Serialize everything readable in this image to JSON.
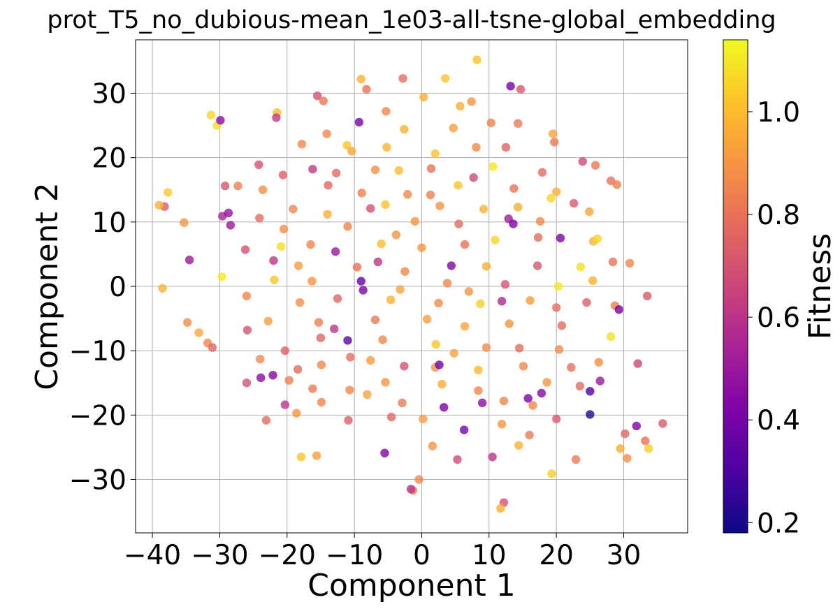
{
  "chart_data": {
    "type": "scatter",
    "title": "prot_T5_no_dubious-mean_1e03-all-tsne-global_embedding",
    "xlabel": "Component 1",
    "ylabel": "Component 2",
    "xlim": [
      -42.5,
      39.5
    ],
    "ylim": [
      -38.3,
      38.3
    ],
    "xticks": [
      -40,
      -30,
      -20,
      -10,
      0,
      10,
      20,
      30
    ],
    "xtick_labels": [
      "−40",
      "−30",
      "−20",
      "−10",
      "0",
      "10",
      "20",
      "30"
    ],
    "yticks": [
      -30,
      -20,
      -10,
      0,
      10,
      20,
      30
    ],
    "ytick_labels": [
      "−30",
      "−20",
      "−10",
      "0",
      "10",
      "20",
      "30"
    ],
    "grid": true,
    "colormap": "plasma",
    "colorbar": {
      "label": "Fitness",
      "range": [
        0.18,
        1.14
      ],
      "ticks": [
        0.2,
        0.4,
        0.6,
        0.8,
        1.0
      ],
      "tick_labels": [
        "0.2",
        "0.4",
        "0.6",
        "0.8",
        "1.0"
      ]
    },
    "points": [
      {
        "x": 8.2,
        "y": 35.2,
        "c": 1.02
      },
      {
        "x": -9.0,
        "y": 32.2,
        "c": 0.98
      },
      {
        "x": -2.8,
        "y": 32.3,
        "c": 0.78
      },
      {
        "x": 3.5,
        "y": 32.3,
        "c": 1.02
      },
      {
        "x": 13.2,
        "y": 31.1,
        "c": 0.4
      },
      {
        "x": 14.7,
        "y": 30.6,
        "c": 0.72
      },
      {
        "x": -8.2,
        "y": 30.6,
        "c": 0.8
      },
      {
        "x": -15.5,
        "y": 29.6,
        "c": 0.7
      },
      {
        "x": -14.6,
        "y": 28.8,
        "c": 0.82
      },
      {
        "x": 0.3,
        "y": 29.4,
        "c": 0.97
      },
      {
        "x": 7.4,
        "y": 28.7,
        "c": 0.9
      },
      {
        "x": -31.3,
        "y": 26.6,
        "c": 1.06
      },
      {
        "x": -30.4,
        "y": 25.0,
        "c": 1.08
      },
      {
        "x": -29.9,
        "y": 25.8,
        "c": 0.45
      },
      {
        "x": -21.5,
        "y": 27.0,
        "c": 1.0
      },
      {
        "x": -21.6,
        "y": 26.2,
        "c": 0.62
      },
      {
        "x": -5.3,
        "y": 27.2,
        "c": 0.86
      },
      {
        "x": -9.3,
        "y": 25.5,
        "c": 0.4
      },
      {
        "x": 5.7,
        "y": 28.0,
        "c": 0.96
      },
      {
        "x": 10.3,
        "y": 25.4,
        "c": 0.85
      },
      {
        "x": 14.3,
        "y": 25.3,
        "c": 0.82
      },
      {
        "x": -2.6,
        "y": 24.4,
        "c": 0.98
      },
      {
        "x": 4.7,
        "y": 24.6,
        "c": 0.93
      },
      {
        "x": 19.5,
        "y": 23.7,
        "c": 0.94
      },
      {
        "x": -14.1,
        "y": 23.7,
        "c": 0.86
      },
      {
        "x": -11.1,
        "y": 21.9,
        "c": 1.02
      },
      {
        "x": -10.4,
        "y": 21.0,
        "c": 0.95
      },
      {
        "x": -5.2,
        "y": 21.6,
        "c": 0.98
      },
      {
        "x": 2.0,
        "y": 20.6,
        "c": 1.02
      },
      {
        "x": 8.1,
        "y": 21.6,
        "c": 0.86
      },
      {
        "x": 12.5,
        "y": 21.6,
        "c": 0.75
      },
      {
        "x": 19.7,
        "y": 22.4,
        "c": 0.82
      },
      {
        "x": -17.8,
        "y": 22.1,
        "c": 0.86
      },
      {
        "x": 23.9,
        "y": 19.4,
        "c": 0.68
      },
      {
        "x": 25.8,
        "y": 18.8,
        "c": 0.82
      },
      {
        "x": -24.2,
        "y": 18.9,
        "c": 0.7
      },
      {
        "x": -20.6,
        "y": 17.3,
        "c": 0.74
      },
      {
        "x": -16.2,
        "y": 18.2,
        "c": 0.62
      },
      {
        "x": -12.7,
        "y": 17.6,
        "c": 0.78
      },
      {
        "x": -3.4,
        "y": 18.0,
        "c": 1.0
      },
      {
        "x": 1.4,
        "y": 18.3,
        "c": 0.8
      },
      {
        "x": 10.6,
        "y": 18.6,
        "c": 1.1
      },
      {
        "x": 17.9,
        "y": 17.7,
        "c": 0.78
      },
      {
        "x": 28.1,
        "y": 16.4,
        "c": 0.8
      },
      {
        "x": -37.7,
        "y": 14.6,
        "c": 1.04
      },
      {
        "x": -29.2,
        "y": 15.6,
        "c": 0.72
      },
      {
        "x": -27.3,
        "y": 15.6,
        "c": 0.84
      },
      {
        "x": -23.6,
        "y": 15.0,
        "c": 0.88
      },
      {
        "x": -13.9,
        "y": 15.7,
        "c": 0.76
      },
      {
        "x": -8.9,
        "y": 14.5,
        "c": 0.84
      },
      {
        "x": -2.1,
        "y": 14.3,
        "c": 0.86
      },
      {
        "x": 5.4,
        "y": 15.7,
        "c": 1.02
      },
      {
        "x": 13.7,
        "y": 15.2,
        "c": 0.8
      },
      {
        "x": 20.0,
        "y": 14.7,
        "c": 0.96
      },
      {
        "x": 29.0,
        "y": 15.8,
        "c": 0.84
      },
      {
        "x": -38.2,
        "y": 12.4,
        "c": 0.72
      },
      {
        "x": -39.0,
        "y": 12.6,
        "c": 0.98
      },
      {
        "x": -35.3,
        "y": 9.9,
        "c": 0.9
      },
      {
        "x": -29.6,
        "y": 10.9,
        "c": 0.54
      },
      {
        "x": -28.7,
        "y": 11.4,
        "c": 0.48
      },
      {
        "x": -24.1,
        "y": 10.6,
        "c": 0.78
      },
      {
        "x": -19.1,
        "y": 12.0,
        "c": 0.86
      },
      {
        "x": -14.0,
        "y": 11.2,
        "c": 0.96
      },
      {
        "x": -7.6,
        "y": 12.1,
        "c": 0.7
      },
      {
        "x": -5.4,
        "y": 12.7,
        "c": 1.02
      },
      {
        "x": 2.7,
        "y": 12.5,
        "c": 0.9
      },
      {
        "x": 9.2,
        "y": 12.0,
        "c": 0.98
      },
      {
        "x": 14.3,
        "y": 12.3,
        "c": 0.96
      },
      {
        "x": 19.2,
        "y": 13.7,
        "c": 1.06
      },
      {
        "x": 22.6,
        "y": 12.9,
        "c": 0.72
      },
      {
        "x": 24.9,
        "y": 11.6,
        "c": 0.94
      },
      {
        "x": -28.4,
        "y": 9.5,
        "c": 0.5
      },
      {
        "x": -20.5,
        "y": 8.9,
        "c": 0.88
      },
      {
        "x": -11.0,
        "y": 9.3,
        "c": 0.85
      },
      {
        "x": -1.0,
        "y": 10.1,
        "c": 0.9
      },
      {
        "x": 5.5,
        "y": 9.7,
        "c": 0.78
      },
      {
        "x": 12.9,
        "y": 10.5,
        "c": 0.52
      },
      {
        "x": 13.6,
        "y": 9.7,
        "c": 0.42
      },
      {
        "x": 17.6,
        "y": 10.1,
        "c": 0.86
      },
      {
        "x": 20.6,
        "y": 7.5,
        "c": 0.42
      },
      {
        "x": -26.2,
        "y": 5.7,
        "c": 0.7
      },
      {
        "x": -20.9,
        "y": 6.2,
        "c": 1.08
      },
      {
        "x": -16.5,
        "y": 6.5,
        "c": 0.86
      },
      {
        "x": -12.8,
        "y": 5.4,
        "c": 0.5
      },
      {
        "x": -6.0,
        "y": 6.6,
        "c": 1.0
      },
      {
        "x": 0.0,
        "y": 6.0,
        "c": 0.9
      },
      {
        "x": 6.4,
        "y": 6.5,
        "c": 0.8
      },
      {
        "x": 10.9,
        "y": 7.2,
        "c": 1.06
      },
      {
        "x": 17.3,
        "y": 7.6,
        "c": 0.78
      },
      {
        "x": 25.5,
        "y": 7.0,
        "c": 0.98
      },
      {
        "x": 26.1,
        "y": 7.4,
        "c": 1.06
      },
      {
        "x": -34.5,
        "y": 4.1,
        "c": 0.5
      },
      {
        "x": -22.0,
        "y": 4.0,
        "c": 0.6
      },
      {
        "x": -18.3,
        "y": 3.2,
        "c": 0.92
      },
      {
        "x": -9.6,
        "y": 3.0,
        "c": 0.8
      },
      {
        "x": -2.5,
        "y": 2.3,
        "c": 0.86
      },
      {
        "x": 4.4,
        "y": 3.2,
        "c": 0.44
      },
      {
        "x": 9.6,
        "y": 3.1,
        "c": 0.96
      },
      {
        "x": 17.2,
        "y": 3.2,
        "c": 0.72
      },
      {
        "x": 23.6,
        "y": 3.0,
        "c": 1.08
      },
      {
        "x": 28.4,
        "y": 3.8,
        "c": 0.8
      },
      {
        "x": 30.9,
        "y": 3.6,
        "c": 0.86
      },
      {
        "x": -38.5,
        "y": -0.3,
        "c": 0.98
      },
      {
        "x": -29.7,
        "y": 1.5,
        "c": 1.1
      },
      {
        "x": -21.9,
        "y": 1.0,
        "c": 1.02
      },
      {
        "x": -16.3,
        "y": 0.8,
        "c": 0.9
      },
      {
        "x": -8.7,
        "y": -0.6,
        "c": 0.42
      },
      {
        "x": -3.2,
        "y": -0.5,
        "c": 0.94
      },
      {
        "x": 3.8,
        "y": 0.5,
        "c": 0.86
      },
      {
        "x": 12.4,
        "y": 0.3,
        "c": 0.7
      },
      {
        "x": 20.3,
        "y": 0.0,
        "c": 1.1
      },
      {
        "x": 25.4,
        "y": 0.9,
        "c": 0.98
      },
      {
        "x": -26.0,
        "y": -1.5,
        "c": 0.86
      },
      {
        "x": -18.1,
        "y": -2.5,
        "c": 0.88
      },
      {
        "x": -12.5,
        "y": -1.9,
        "c": 0.76
      },
      {
        "x": -4.6,
        "y": -2.1,
        "c": 0.98
      },
      {
        "x": 2.5,
        "y": -2.6,
        "c": 0.86
      },
      {
        "x": 8.7,
        "y": -2.7,
        "c": 1.04
      },
      {
        "x": 16.1,
        "y": -2.2,
        "c": 0.92
      },
      {
        "x": 20.0,
        "y": -3.3,
        "c": 0.78
      },
      {
        "x": 24.5,
        "y": -2.5,
        "c": 0.74
      },
      {
        "x": 28.7,
        "y": -3.0,
        "c": 0.84
      },
      {
        "x": 29.3,
        "y": -3.6,
        "c": 0.4
      },
      {
        "x": 33.5,
        "y": -1.5,
        "c": 0.72
      },
      {
        "x": -34.8,
        "y": -5.6,
        "c": 0.88
      },
      {
        "x": -33.1,
        "y": -7.2,
        "c": 0.94
      },
      {
        "x": -22.8,
        "y": -5.4,
        "c": 0.92
      },
      {
        "x": -15.3,
        "y": -5.6,
        "c": 0.84
      },
      {
        "x": -6.9,
        "y": -5.2,
        "c": 0.82
      },
      {
        "x": 0.8,
        "y": -5.1,
        "c": 0.92
      },
      {
        "x": 6.4,
        "y": -6.2,
        "c": 0.94
      },
      {
        "x": 13.0,
        "y": -5.8,
        "c": 0.9
      },
      {
        "x": 20.8,
        "y": -6.1,
        "c": 0.78
      },
      {
        "x": 28.1,
        "y": -7.8,
        "c": 1.08
      },
      {
        "x": -31.8,
        "y": -8.8,
        "c": 0.86
      },
      {
        "x": -25.9,
        "y": -6.8,
        "c": 0.7
      },
      {
        "x": -20.3,
        "y": -10.0,
        "c": 0.74
      },
      {
        "x": -15.0,
        "y": -8.0,
        "c": 0.76
      },
      {
        "x": -11.0,
        "y": -8.4,
        "c": 0.34
      },
      {
        "x": -5.8,
        "y": -8.3,
        "c": 0.86
      },
      {
        "x": 2.1,
        "y": -9.0,
        "c": 1.02
      },
      {
        "x": 9.6,
        "y": -9.5,
        "c": 0.88
      },
      {
        "x": 14.5,
        "y": -9.6,
        "c": 0.78
      },
      {
        "x": 20.4,
        "y": -9.8,
        "c": 0.86
      },
      {
        "x": -31.1,
        "y": -9.5,
        "c": 0.76
      },
      {
        "x": -24.0,
        "y": -11.3,
        "c": 0.86
      },
      {
        "x": -18.4,
        "y": -12.9,
        "c": 0.78
      },
      {
        "x": -14.9,
        "y": -12.2,
        "c": 0.86
      },
      {
        "x": -10.6,
        "y": -11.0,
        "c": 0.78
      },
      {
        "x": -7.6,
        "y": -11.5,
        "c": 0.92
      },
      {
        "x": -2.6,
        "y": -12.4,
        "c": 0.7
      },
      {
        "x": 2.0,
        "y": -12.6,
        "c": 0.9
      },
      {
        "x": 8.4,
        "y": -13.0,
        "c": 1.0
      },
      {
        "x": 15.1,
        "y": -12.4,
        "c": 0.86
      },
      {
        "x": 22.2,
        "y": -12.6,
        "c": 0.8
      },
      {
        "x": 26.3,
        "y": -11.8,
        "c": 0.88
      },
      {
        "x": 32.1,
        "y": -12.0,
        "c": 0.66
      },
      {
        "x": -23.9,
        "y": -14.2,
        "c": 0.46
      },
      {
        "x": -22.1,
        "y": -13.8,
        "c": 0.44
      },
      {
        "x": -16.2,
        "y": -15.9,
        "c": 0.82
      },
      {
        "x": -10.7,
        "y": -16.1,
        "c": 0.86
      },
      {
        "x": -5.4,
        "y": -14.9,
        "c": 0.9
      },
      {
        "x": 2.6,
        "y": -12.2,
        "c": 0.38
      },
      {
        "x": 3.0,
        "y": -15.2,
        "c": 0.96
      },
      {
        "x": 8.4,
        "y": -16.2,
        "c": 0.86
      },
      {
        "x": 15.8,
        "y": -17.4,
        "c": 0.42
      },
      {
        "x": 17.8,
        "y": -16.6,
        "c": 0.44
      },
      {
        "x": 23.5,
        "y": -15.5,
        "c": 0.78
      },
      {
        "x": 26.5,
        "y": -14.7,
        "c": 0.5
      },
      {
        "x": 25.0,
        "y": -16.3,
        "c": 0.3
      },
      {
        "x": -26.0,
        "y": -15.0,
        "c": 0.7
      },
      {
        "x": -20.3,
        "y": -18.4,
        "c": 0.6
      },
      {
        "x": -14.9,
        "y": -18.0,
        "c": 0.86
      },
      {
        "x": -8.1,
        "y": -16.8,
        "c": 0.94
      },
      {
        "x": -2.9,
        "y": -18.1,
        "c": 0.82
      },
      {
        "x": 3.3,
        "y": -18.8,
        "c": 0.42
      },
      {
        "x": 9.0,
        "y": -18.1,
        "c": 0.46
      },
      {
        "x": 12.2,
        "y": -17.8,
        "c": 0.86
      },
      {
        "x": 16.5,
        "y": -18.5,
        "c": 0.86
      },
      {
        "x": 25.0,
        "y": -19.9,
        "c": 0.22
      },
      {
        "x": -23.1,
        "y": -20.8,
        "c": 0.78
      },
      {
        "x": -18.6,
        "y": -19.7,
        "c": 0.9
      },
      {
        "x": -10.9,
        "y": -20.8,
        "c": 0.74
      },
      {
        "x": -4.5,
        "y": -20.3,
        "c": 0.76
      },
      {
        "x": 0.2,
        "y": -20.6,
        "c": 0.92
      },
      {
        "x": 6.3,
        "y": -22.3,
        "c": 0.4
      },
      {
        "x": 11.9,
        "y": -21.4,
        "c": 0.9
      },
      {
        "x": 16.0,
        "y": -23.1,
        "c": 0.82
      },
      {
        "x": 20.0,
        "y": -20.6,
        "c": 0.72
      },
      {
        "x": 31.9,
        "y": -21.7,
        "c": 0.42
      },
      {
        "x": 30.2,
        "y": -22.9,
        "c": 0.76
      },
      {
        "x": 33.2,
        "y": -24.0,
        "c": 0.8
      },
      {
        "x": 35.8,
        "y": -21.3,
        "c": 0.72
      },
      {
        "x": -17.9,
        "y": -26.5,
        "c": 1.02
      },
      {
        "x": -15.6,
        "y": -26.3,
        "c": 0.92
      },
      {
        "x": -5.5,
        "y": -25.9,
        "c": 0.42
      },
      {
        "x": 1.6,
        "y": -24.8,
        "c": 0.9
      },
      {
        "x": 5.3,
        "y": -26.9,
        "c": 0.68
      },
      {
        "x": 10.5,
        "y": -26.5,
        "c": 0.6
      },
      {
        "x": 14.4,
        "y": -24.7,
        "c": 0.98
      },
      {
        "x": 19.3,
        "y": -29.1,
        "c": 1.04
      },
      {
        "x": 22.9,
        "y": -26.9,
        "c": 0.82
      },
      {
        "x": 29.5,
        "y": -25.2,
        "c": 0.96
      },
      {
        "x": 30.5,
        "y": -26.7,
        "c": 0.88
      },
      {
        "x": 33.7,
        "y": -25.2,
        "c": 1.04
      },
      {
        "x": -0.4,
        "y": -30.0,
        "c": 0.86
      },
      {
        "x": -1.3,
        "y": -31.7,
        "c": 0.82
      },
      {
        "x": -1.6,
        "y": -31.5,
        "c": 0.6
      },
      {
        "x": 12.2,
        "y": -33.6,
        "c": 0.7
      },
      {
        "x": 11.7,
        "y": -34.5,
        "c": 0.98
      },
      {
        "x": -6.5,
        "y": 3.8,
        "c": 0.6
      },
      {
        "x": -9.0,
        "y": 0.8,
        "c": 0.36
      },
      {
        "x": 7.0,
        "y": -0.8,
        "c": 0.9
      },
      {
        "x": 11.9,
        "y": -2.3,
        "c": 0.56
      },
      {
        "x": -13.0,
        "y": -6.6,
        "c": 0.6
      },
      {
        "x": 4.8,
        "y": -10.4,
        "c": 0.94
      },
      {
        "x": -3.8,
        "y": 8.0,
        "c": 0.9
      },
      {
        "x": 1.3,
        "y": 14.2,
        "c": 0.84
      },
      {
        "x": -19.7,
        "y": -14.6,
        "c": 0.84
      },
      {
        "x": 18.6,
        "y": -14.9,
        "c": 0.9
      },
      {
        "x": -6.9,
        "y": 18.1,
        "c": 0.88
      },
      {
        "x": 7.7,
        "y": 16.9,
        "c": 0.68
      }
    ]
  }
}
